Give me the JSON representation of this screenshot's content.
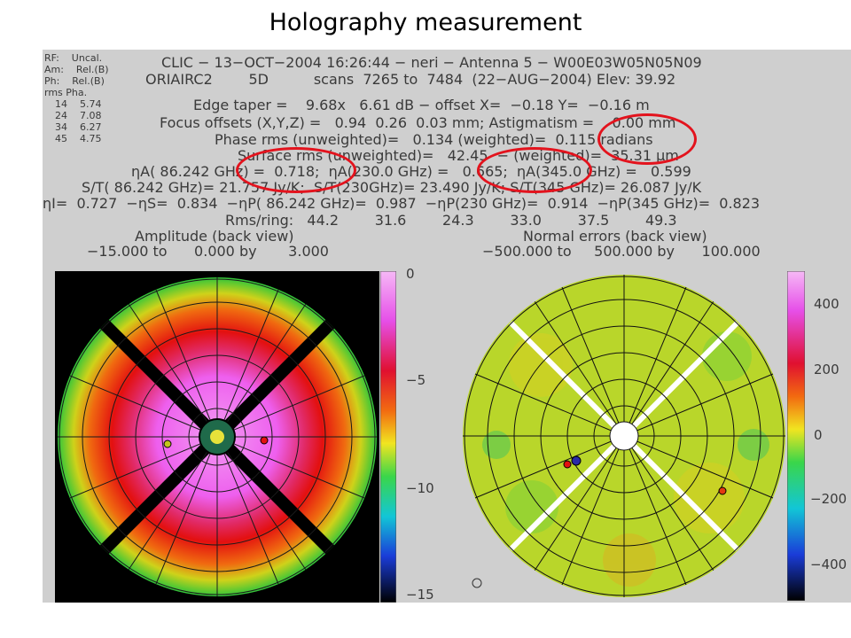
{
  "slide_title": "Holography measurement",
  "sidebar": {
    "rf": "RF:    Uncal.",
    "am": "Am:    Rel.(B)",
    "ph": "Ph:    Rel.(B)",
    "rms_header": "rms Pha.",
    "rows": [
      "14    5.74",
      "24    7.08",
      "34    6.27",
      "45    4.75"
    ]
  },
  "header": {
    "line1": "CLIC − 13−OCT−2004 16:26:44 − neri − Antenna 5 − W00E03W05N05N09",
    "line2": "ORIAIRC2        5D          scans  7265 to  7484  (22−AUG−2004) Elev: 39.92",
    "line3": "Edge taper =    9.68x   6.61 dB − offset X=  −0.18 Y=  −0.16 m",
    "line4": "Focus offsets (X,Y,Z) =   0.94  0.26  0.03 mm; Astigmatism =    0.00 mm",
    "line5": "Phase rms (unweighted)=   0.134 (weighted)=  0.115 radians",
    "line6": "Surface rms (unweighted)=   42.45  − (weighted)=  35.31 μm",
    "line7": "ηA( 86.242 GHz) =  0.718;  ηA(230.0 GHz) =   0.665;  ηA(345.0 GHz) =   0.599",
    "line8": "S/T( 86.242 GHz)= 21.757 Jy/K;  S/T(230GHz)= 23.490 Jy/K; S/T(345 GHz)= 26.087 Jy/K",
    "line9": "ηI=  0.727  −ηS=  0.834  −ηP( 86.242 GHz)=  0.987  −ηP(230 GHz)=  0.914  −ηP(345 GHz)=  0.823",
    "line10": "Rms/ring:   44.2        31.6        24.3        33.0        37.5        49.3"
  },
  "left_panel": {
    "title": "Amplitude (back view)",
    "range": "−15.000 to      0.000 by       3.000",
    "colorbar_ticks": [
      "0",
      "−5",
      "−10",
      "−15"
    ]
  },
  "right_panel": {
    "title": "Normal errors (back view)",
    "range": "−500.000 to     500.000 by      100.000",
    "colorbar_ticks": [
      "400",
      "200",
      "0",
      "−200",
      "−400"
    ]
  },
  "colors": {
    "highlight": "#e3131d",
    "figure_bg": "#cfcfcf"
  }
}
